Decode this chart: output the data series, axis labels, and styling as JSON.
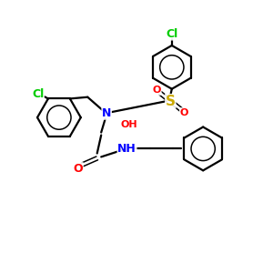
{
  "bg_color": "#ffffff",
  "bond_color": "#000000",
  "N_color": "#0000ff",
  "O_color": "#ff0000",
  "S_color": "#ccaa00",
  "Cl_color": "#00cc00",
  "figsize": [
    3.0,
    3.0
  ],
  "dpi": 100,
  "xlim": [
    0,
    10
  ],
  "ylim": [
    0,
    10
  ],
  "lw": 1.6,
  "lw_thin": 1.1,
  "ring_r": 0.8,
  "font_size_atom": 9,
  "font_size_small": 8
}
